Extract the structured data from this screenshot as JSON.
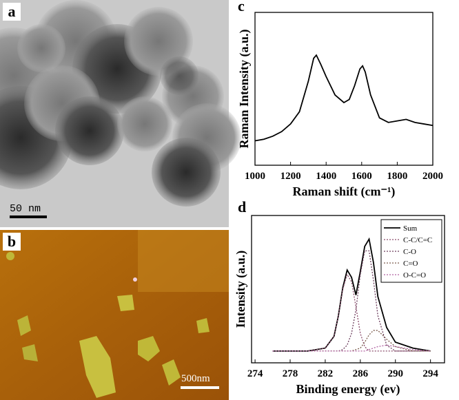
{
  "panels": {
    "a": {
      "label": "a",
      "scale_bar": "50 nm"
    },
    "b": {
      "label": "b",
      "scale_bar": "500nm"
    }
  },
  "chart_data": [
    {
      "type": "line",
      "label": "c",
      "xlabel": "Raman shift (cm⁻¹)",
      "ylabel": "Raman Intensity (a.u.)",
      "xlim": [
        1000,
        2000
      ],
      "xticks": [
        1000,
        1200,
        1400,
        1600,
        1800,
        2000
      ],
      "ylim": [
        0,
        100
      ],
      "x": [
        1000,
        1050,
        1100,
        1150,
        1200,
        1250,
        1300,
        1330,
        1345,
        1370,
        1400,
        1450,
        1500,
        1530,
        1560,
        1590,
        1605,
        1620,
        1650,
        1700,
        1750,
        1800,
        1850,
        1900,
        1950,
        2000
      ],
      "series": [
        {
          "color": "#000000",
          "style": "solid",
          "values": [
            16,
            17,
            19,
            22,
            27,
            35,
            55,
            70,
            72,
            66,
            58,
            46,
            41,
            43,
            52,
            63,
            65,
            61,
            46,
            31,
            28,
            29,
            30,
            28,
            27,
            26
          ]
        }
      ]
    },
    {
      "type": "line",
      "label": "d",
      "xlabel": "Binding energy (ev)",
      "ylabel": "Intensity (a.u.)",
      "legend": "upper right",
      "xlim": [
        273.6,
        295.6
      ],
      "xticks": [
        274,
        278,
        282,
        286,
        290,
        294
      ],
      "ylim": [
        0,
        100
      ],
      "x": [
        276,
        278,
        280,
        282,
        283,
        283.5,
        284,
        284.5,
        285,
        285.5,
        286,
        286.5,
        287,
        287.5,
        288,
        289,
        290,
        292,
        294
      ],
      "series": [
        {
          "name": "Sum",
          "color": "#000000",
          "style": "solid",
          "values": [
            8,
            8,
            8,
            10,
            18,
            32,
            51,
            63,
            58,
            46,
            62,
            79,
            84,
            68,
            45,
            24,
            14,
            10,
            8
          ]
        },
        {
          "name": "C-C/C=C",
          "color": "#8a4a6a",
          "style": "dotted",
          "values": [
            8,
            8,
            8,
            10,
            18,
            32,
            50,
            60,
            55,
            38,
            20,
            11,
            8,
            8,
            8,
            8,
            8,
            8,
            8
          ]
        },
        {
          "name": "C-O",
          "color": "#6a3a5a",
          "style": "dotted",
          "values": [
            8,
            8,
            8,
            8,
            8,
            8,
            9,
            12,
            20,
            36,
            60,
            76,
            76,
            56,
            32,
            12,
            8,
            8,
            8
          ]
        },
        {
          "name": "C=O",
          "color": "#7a5a4a",
          "style": "dotted",
          "values": [
            8,
            8,
            8,
            8,
            8,
            8,
            8,
            8,
            8,
            9,
            10,
            14,
            19,
            22,
            22,
            16,
            11,
            8,
            8
          ]
        },
        {
          "name": "O-C=O",
          "color": "#b060a0",
          "style": "dotted",
          "values": [
            8,
            8,
            8,
            8,
            8,
            8,
            8,
            8,
            8,
            8,
            8,
            8,
            9,
            10,
            11,
            12,
            11,
            9,
            8
          ]
        }
      ]
    }
  ]
}
